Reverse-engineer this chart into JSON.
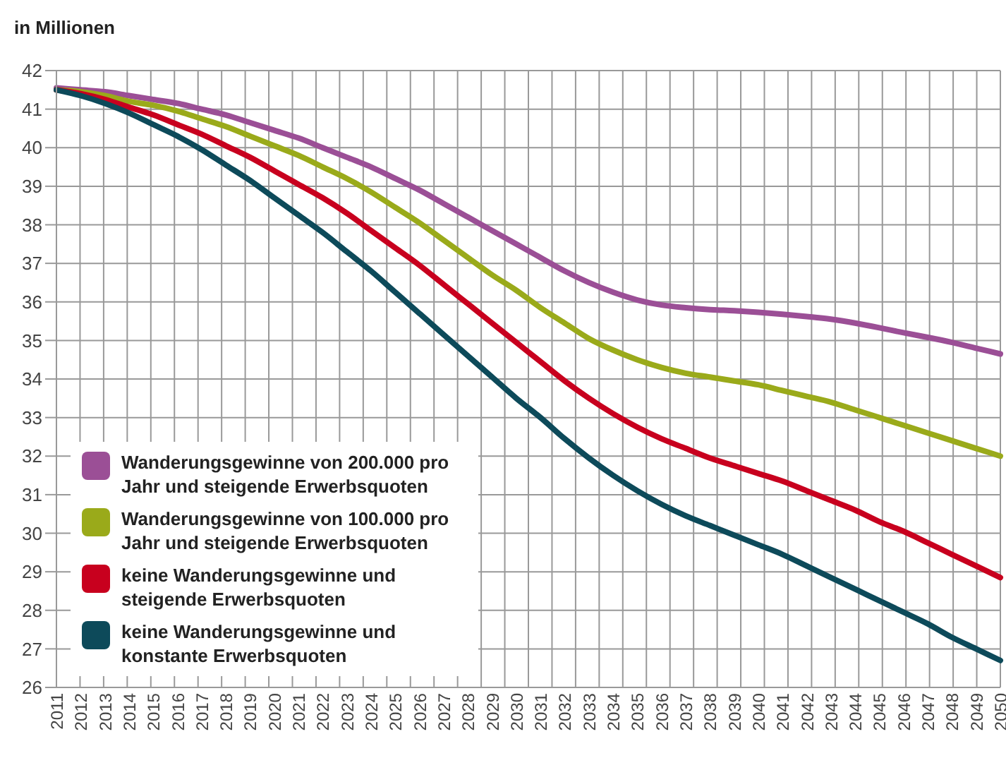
{
  "chart_data": {
    "type": "line",
    "ylabel": "in Millionen",
    "categories": [
      "2011",
      "2012",
      "2013",
      "2014",
      "2015",
      "2016",
      "2017",
      "2018",
      "2019",
      "2020",
      "2021",
      "2022",
      "2023",
      "2024",
      "2025",
      "2026",
      "2027",
      "2028",
      "2029",
      "2030",
      "2031",
      "2032",
      "2033",
      "2034",
      "2035",
      "2036",
      "2037",
      "2038",
      "2039",
      "2040",
      "2041",
      "2042",
      "2043",
      "2044",
      "2045",
      "2046",
      "2047",
      "2048",
      "2049",
      "2050"
    ],
    "series": [
      {
        "name": "Wanderungsgewinne von 200.000 pro Jahr und steigende Erwerbsquoten",
        "color": "#9b4f96",
        "values": [
          41.55,
          41.5,
          41.45,
          41.35,
          41.25,
          41.15,
          41.0,
          40.85,
          40.65,
          40.45,
          40.25,
          40.0,
          39.75,
          39.5,
          39.2,
          38.9,
          38.55,
          38.2,
          37.85,
          37.5,
          37.15,
          36.8,
          36.5,
          36.25,
          36.05,
          35.92,
          35.85,
          35.8,
          35.77,
          35.73,
          35.68,
          35.62,
          35.55,
          35.45,
          35.33,
          35.2,
          35.08,
          34.95,
          34.8,
          34.65
        ]
      },
      {
        "name": "Wanderungsgewinne von 100.000 pro Jahr und steigende Erwerbsquoten",
        "color": "#9aaa1a",
        "values": [
          41.5,
          41.45,
          41.35,
          41.2,
          41.1,
          40.95,
          40.75,
          40.55,
          40.3,
          40.05,
          39.8,
          39.5,
          39.2,
          38.85,
          38.45,
          38.05,
          37.6,
          37.15,
          36.7,
          36.3,
          35.85,
          35.45,
          35.05,
          34.75,
          34.5,
          34.3,
          34.15,
          34.05,
          33.95,
          33.85,
          33.7,
          33.55,
          33.4,
          33.2,
          33.0,
          32.8,
          32.6,
          32.4,
          32.2,
          32.0
        ]
      },
      {
        "name": "keine Wanderungsgewinne und steigende Erwerbsquoten",
        "color": "#c8001e",
        "values": [
          41.5,
          41.4,
          41.25,
          41.05,
          40.85,
          40.6,
          40.35,
          40.05,
          39.75,
          39.4,
          39.05,
          38.7,
          38.3,
          37.85,
          37.4,
          36.95,
          36.45,
          35.95,
          35.45,
          34.95,
          34.45,
          33.95,
          33.5,
          33.1,
          32.75,
          32.45,
          32.2,
          31.95,
          31.75,
          31.55,
          31.35,
          31.1,
          30.85,
          30.6,
          30.3,
          30.05,
          29.75,
          29.45,
          29.15,
          28.85
        ]
      },
      {
        "name": "keine Wanderungsgewinne und konstante Erwerbsquoten",
        "color": "#0d4a5a",
        "values": [
          41.5,
          41.35,
          41.15,
          40.9,
          40.6,
          40.3,
          39.95,
          39.55,
          39.15,
          38.7,
          38.25,
          37.8,
          37.3,
          36.8,
          36.25,
          35.7,
          35.15,
          34.6,
          34.05,
          33.5,
          33.0,
          32.45,
          31.95,
          31.5,
          31.1,
          30.75,
          30.45,
          30.2,
          29.95,
          29.7,
          29.45,
          29.15,
          28.85,
          28.55,
          28.25,
          27.95,
          27.65,
          27.3,
          27.0,
          26.7
        ]
      }
    ],
    "ylim": [
      26,
      42
    ],
    "yticks": [
      26,
      27,
      28,
      29,
      30,
      31,
      32,
      33,
      34,
      35,
      36,
      37,
      38,
      39,
      40,
      41,
      42
    ],
    "grid": true,
    "legend": "bottom left",
    "marker": "none",
    "line_style": "solid"
  }
}
